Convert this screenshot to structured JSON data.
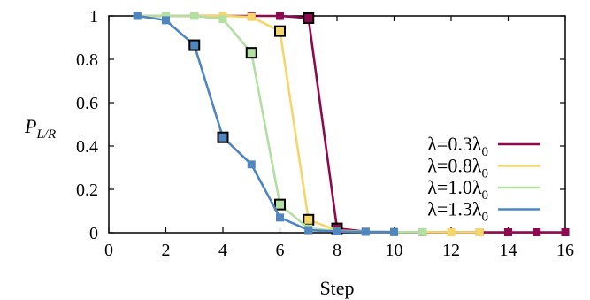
{
  "chart_data": {
    "type": "line",
    "xlabel": "Step",
    "ylabel_main": "P",
    "ylabel_sub": "L/R",
    "xlim": [
      0,
      16
    ],
    "ylim": [
      0,
      1
    ],
    "xticks": [
      "0",
      "2",
      "4",
      "6",
      "8",
      "10",
      "12",
      "14",
      "16"
    ],
    "yticks": [
      "0",
      "0.2",
      "0.4",
      "0.6",
      "0.8",
      "1"
    ],
    "grid": false,
    "legend_position": "right",
    "series": [
      {
        "name": "λ=0.3λ0",
        "name_main": "λ=0.3λ",
        "name_sub": "0",
        "color": "#8e0a4e",
        "x": [
          1,
          2,
          3,
          4,
          5,
          6,
          7,
          8,
          9,
          10,
          11,
          12,
          13,
          14,
          15,
          16
        ],
        "values": [
          1.0,
          1.0,
          1.0,
          1.0,
          1.0,
          1.0,
          0.99,
          0.02,
          0.005,
          0.003,
          0.002,
          0.002,
          0.002,
          0.002,
          0.002,
          0.002
        ]
      },
      {
        "name": "λ=0.8λ0",
        "name_main": "λ=0.8λ",
        "name_sub": "0",
        "color": "#f5d66b",
        "x": [
          1,
          2,
          3,
          4,
          5,
          6,
          7,
          8,
          9,
          10,
          11,
          12,
          13
        ],
        "values": [
          1.0,
          1.0,
          1.0,
          1.0,
          0.995,
          0.93,
          0.06,
          0.01,
          0.005,
          0.003,
          0.003,
          0.002,
          0.002
        ]
      },
      {
        "name": "λ=1.0λ0",
        "name_main": "λ=1.0λ",
        "name_sub": "0",
        "color": "#b2dfa2",
        "x": [
          1,
          2,
          3,
          4,
          5,
          6,
          7,
          8,
          9,
          10,
          11
        ],
        "values": [
          1.0,
          1.0,
          1.0,
          0.985,
          0.83,
          0.13,
          0.02,
          0.008,
          0.005,
          0.003,
          0.003
        ]
      },
      {
        "name": "λ=1.3λ0",
        "name_main": "λ=1.3λ",
        "name_sub": "0",
        "color": "#4f86c0",
        "x": [
          1,
          2,
          3,
          4,
          5,
          6,
          7,
          8,
          9,
          10
        ],
        "values": [
          1.0,
          0.98,
          0.865,
          0.44,
          0.315,
          0.07,
          0.012,
          0.006,
          0.004,
          0.003
        ]
      }
    ],
    "highlighted_markers": [
      {
        "series": 0,
        "x": 7
      },
      {
        "series": 0,
        "x": 8
      },
      {
        "series": 1,
        "x": 6
      },
      {
        "series": 1,
        "x": 7
      },
      {
        "series": 2,
        "x": 5
      },
      {
        "series": 2,
        "x": 6
      },
      {
        "series": 3,
        "x": 3
      },
      {
        "series": 3,
        "x": 4
      }
    ]
  }
}
